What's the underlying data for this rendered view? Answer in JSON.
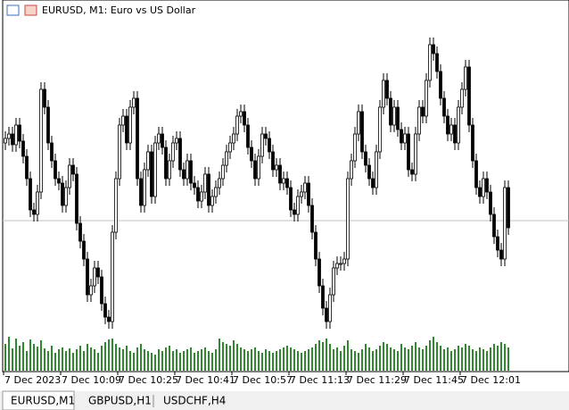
{
  "window": {
    "title": "EURUSD, M1:  Euro vs US Dollar",
    "tabs": [
      "EURUSD,M1",
      "GBPUSD,H1",
      "USDCHF,H4"
    ]
  },
  "chart_data": {
    "type": "candlestick",
    "color": "#000000",
    "volume_color": "#2f8a2f",
    "ylim": [
      20,
      380
    ],
    "y2lim": [
      0,
      40
    ],
    "xticks": [
      {
        "value": 0,
        "label": "7 Dec 2023"
      },
      {
        "value": 16,
        "label": "7 Dec 10:09"
      },
      {
        "value": 32,
        "label": "7 Dec 10:25"
      },
      {
        "value": 48,
        "label": "7 Dec 10:41"
      },
      {
        "value": 64,
        "label": "7 Dec 10:57"
      },
      {
        "value": 80,
        "label": "7 Dec 11:13"
      },
      {
        "value": 96,
        "label": "7 Dec 11:29"
      },
      {
        "value": 112,
        "label": "7 Dec 11:45"
      },
      {
        "value": 128,
        "label": "7 Dec 12:01"
      }
    ],
    "open": [
      240,
      245,
      250,
      238,
      260,
      242,
      225,
      200,
      165,
      160,
      185,
      300,
      280,
      240,
      220,
      200,
      195,
      170,
      190,
      215,
      205,
      150,
      130,
      110,
      70,
      80,
      100,
      90,
      60,
      45,
      40,
      140,
      200,
      260,
      270,
      240,
      280,
      290,
      200,
      170,
      210,
      230,
      180,
      240,
      250,
      235,
      200,
      220,
      240,
      245,
      210,
      200,
      220,
      195,
      190,
      175,
      185,
      205,
      170,
      180,
      190,
      200,
      215,
      230,
      240,
      250,
      270,
      275,
      260,
      235,
      220,
      200,
      225,
      250,
      245,
      230,
      210,
      215,
      195,
      200,
      190,
      165,
      160,
      180,
      185,
      195,
      170,
      140,
      110,
      80,
      55,
      40,
      70,
      100,
      105,
      105,
      110,
      200,
      220,
      250,
      275,
      230,
      215,
      200,
      190,
      230,
      280,
      310,
      290,
      260,
      280,
      255,
      240,
      250,
      210,
      205,
      250,
      280,
      270,
      310,
      350,
      340,
      320,
      290,
      270,
      250,
      260,
      240,
      280,
      300,
      325,
      260,
      220,
      190,
      180,
      200,
      185,
      160,
      135,
      120,
      110,
      190
    ],
    "high": [
      253,
      258,
      258,
      268,
      268,
      250,
      233,
      208,
      173,
      193,
      308,
      308,
      288,
      248,
      228,
      208,
      203,
      198,
      223,
      223,
      213,
      158,
      138,
      118,
      88,
      108,
      108,
      98,
      68,
      53,
      148,
      208,
      268,
      278,
      278,
      288,
      298,
      298,
      208,
      218,
      238,
      238,
      248,
      258,
      258,
      243,
      228,
      248,
      253,
      253,
      218,
      228,
      228,
      203,
      198,
      193,
      213,
      213,
      188,
      198,
      208,
      223,
      238,
      248,
      258,
      278,
      283,
      283,
      268,
      243,
      228,
      233,
      258,
      258,
      253,
      238,
      223,
      223,
      208,
      208,
      198,
      173,
      188,
      193,
      203,
      203,
      178,
      148,
      118,
      88,
      63,
      78,
      108,
      113,
      113,
      118,
      208,
      228,
      258,
      283,
      283,
      238,
      223,
      208,
      238,
      288,
      318,
      318,
      298,
      288,
      288,
      263,
      258,
      258,
      218,
      258,
      288,
      288,
      318,
      358,
      358,
      348,
      328,
      298,
      278,
      268,
      268,
      288,
      308,
      333,
      333,
      268,
      228,
      198,
      208,
      208,
      193,
      168,
      143,
      128,
      198,
      198
    ],
    "low": [
      232,
      237,
      230,
      230,
      234,
      217,
      192,
      157,
      152,
      152,
      177,
      272,
      232,
      212,
      192,
      187,
      162,
      162,
      182,
      197,
      142,
      122,
      102,
      62,
      62,
      72,
      82,
      52,
      37,
      32,
      32,
      132,
      192,
      252,
      232,
      232,
      272,
      192,
      162,
      162,
      202,
      172,
      172,
      232,
      227,
      192,
      192,
      212,
      232,
      202,
      192,
      192,
      187,
      182,
      167,
      167,
      177,
      162,
      162,
      172,
      182,
      192,
      207,
      222,
      232,
      242,
      262,
      252,
      227,
      212,
      192,
      192,
      217,
      237,
      222,
      202,
      202,
      187,
      187,
      182,
      157,
      152,
      152,
      172,
      177,
      162,
      132,
      102,
      72,
      47,
      32,
      32,
      62,
      92,
      97,
      97,
      102,
      192,
      212,
      242,
      222,
      207,
      192,
      182,
      182,
      222,
      272,
      282,
      252,
      252,
      247,
      232,
      232,
      202,
      197,
      197,
      242,
      262,
      262,
      302,
      332,
      312,
      282,
      262,
      242,
      242,
      232,
      232,
      272,
      292,
      252,
      212,
      182,
      172,
      172,
      177,
      152,
      127,
      112,
      102,
      102,
      137
    ],
    "close": [
      245,
      250,
      238,
      260,
      242,
      225,
      200,
      165,
      160,
      185,
      300,
      280,
      240,
      220,
      200,
      195,
      170,
      190,
      215,
      205,
      150,
      130,
      110,
      70,
      80,
      100,
      90,
      60,
      45,
      40,
      140,
      200,
      260,
      270,
      240,
      280,
      290,
      200,
      170,
      210,
      230,
      180,
      240,
      250,
      235,
      200,
      220,
      240,
      245,
      210,
      200,
      220,
      195,
      190,
      175,
      185,
      205,
      170,
      180,
      190,
      200,
      215,
      230,
      240,
      250,
      270,
      275,
      260,
      235,
      220,
      200,
      225,
      250,
      245,
      230,
      210,
      215,
      195,
      200,
      190,
      165,
      160,
      180,
      185,
      195,
      170,
      140,
      110,
      80,
      55,
      40,
      70,
      100,
      105,
      105,
      110,
      200,
      220,
      250,
      275,
      230,
      215,
      200,
      190,
      230,
      280,
      310,
      290,
      260,
      280,
      255,
      240,
      250,
      210,
      205,
      250,
      280,
      270,
      310,
      350,
      340,
      320,
      290,
      270,
      250,
      260,
      240,
      280,
      300,
      325,
      260,
      220,
      190,
      180,
      200,
      185,
      160,
      135,
      120,
      110,
      190,
      145
    ],
    "volume": [
      30,
      38,
      25,
      36,
      28,
      32,
      22,
      35,
      30,
      27,
      34,
      25,
      22,
      28,
      20,
      24,
      26,
      22,
      25,
      20,
      24,
      28,
      22,
      30,
      26,
      24,
      20,
      28,
      32,
      35,
      36,
      30,
      26,
      24,
      28,
      22,
      20,
      26,
      30,
      24,
      22,
      20,
      18,
      24,
      22,
      26,
      28,
      22,
      24,
      20,
      22,
      24,
      26,
      20,
      22,
      24,
      26,
      22,
      20,
      24,
      36,
      32,
      30,
      28,
      34,
      30,
      26,
      24,
      22,
      24,
      26,
      22,
      20,
      24,
      22,
      20,
      22,
      24,
      26,
      28,
      26,
      24,
      22,
      20,
      22,
      24,
      26,
      30,
      34,
      32,
      36,
      30,
      24,
      26,
      22,
      28,
      34,
      24,
      22,
      20,
      24,
      30,
      26,
      22,
      24,
      28,
      32,
      30,
      26,
      24,
      22,
      30,
      26,
      24,
      28,
      32,
      26,
      24,
      28,
      34,
      38,
      32,
      28,
      24,
      26,
      22,
      24,
      28,
      26,
      30,
      28,
      24,
      22,
      26,
      24,
      22,
      26,
      30,
      28,
      32,
      30,
      26
    ]
  }
}
